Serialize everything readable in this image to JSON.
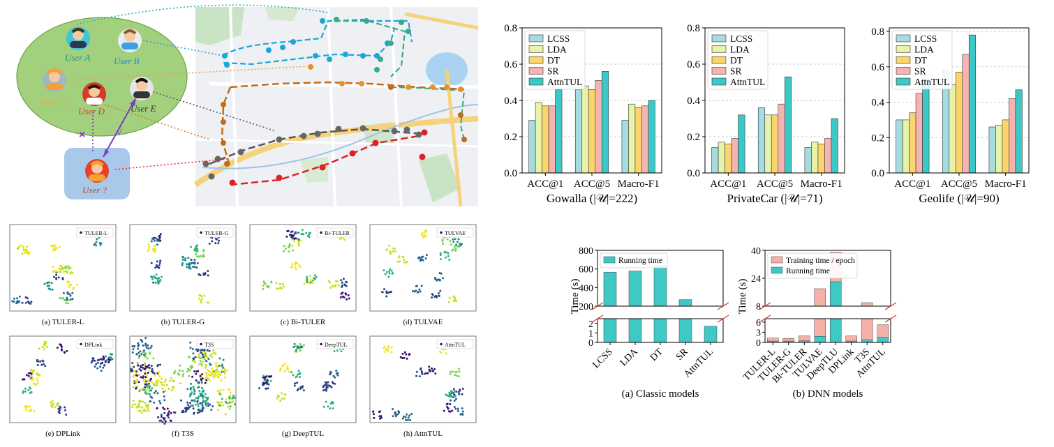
{
  "colors": {
    "LCSS": "#a6dbe0",
    "LDA": "#e6f3a8",
    "DT": "#fbd56b",
    "SR": "#f6b4b0",
    "AttnTUL": "#3cc8c6",
    "training": "#f6b0aa",
    "running": "#3ec9c6"
  },
  "diagram": {
    "users": [
      "User A",
      "User B",
      "User C",
      "User D",
      "User E",
      "User ?"
    ],
    "check": "√",
    "cross": "×"
  },
  "chart_data": [
    {
      "type": "bar",
      "title": "Gowalla (|𝒰|=222)",
      "categories": [
        "ACC@1",
        "ACC@5",
        "Macro-F1"
      ],
      "ylim": [
        0,
        0.8
      ],
      "yticks": [
        "0.0",
        "0.2",
        "0.4",
        "0.6",
        "0.8"
      ],
      "grid": true,
      "legend": "top-left",
      "series": [
        {
          "name": "LCSS",
          "values": [
            0.29,
            0.46,
            0.29
          ]
        },
        {
          "name": "LDA",
          "values": [
            0.39,
            0.48,
            0.38
          ]
        },
        {
          "name": "DT",
          "values": [
            0.37,
            0.46,
            0.36
          ]
        },
        {
          "name": "SR",
          "values": [
            0.37,
            0.51,
            0.37
          ]
        },
        {
          "name": "AttnTUL",
          "values": [
            0.46,
            0.56,
            0.4
          ]
        }
      ]
    },
    {
      "type": "bar",
      "title": "PrivateCar (|𝒰|=71)",
      "categories": [
        "ACC@1",
        "ACC@5",
        "Macro-F1"
      ],
      "ylim": [
        0,
        0.8
      ],
      "yticks": [
        "0.0",
        "0.2",
        "0.4",
        "0.6",
        "0.8"
      ],
      "grid": true,
      "legend": "top-left",
      "series": [
        {
          "name": "LCSS",
          "values": [
            0.14,
            0.36,
            0.14
          ]
        },
        {
          "name": "LDA",
          "values": [
            0.17,
            0.32,
            0.17
          ]
        },
        {
          "name": "DT",
          "values": [
            0.16,
            0.32,
            0.16
          ]
        },
        {
          "name": "SR",
          "values": [
            0.19,
            0.38,
            0.19
          ]
        },
        {
          "name": "AttnTUL",
          "values": [
            0.32,
            0.53,
            0.3
          ]
        }
      ]
    },
    {
      "type": "bar",
      "title": "Geolife (|𝒰|=90)",
      "categories": [
        "ACC@1",
        "ACC@5",
        "Macro-F1"
      ],
      "ylim": [
        0,
        0.82
      ],
      "yticks": [
        "0.0",
        "0.2",
        "0.4",
        "0.6",
        "0.8"
      ],
      "grid": true,
      "legend": "top-left",
      "series": [
        {
          "name": "LCSS",
          "values": [
            0.3,
            0.58,
            0.26
          ]
        },
        {
          "name": "LDA",
          "values": [
            0.3,
            0.5,
            0.27
          ]
        },
        {
          "name": "DT",
          "values": [
            0.34,
            0.57,
            0.3
          ]
        },
        {
          "name": "SR",
          "values": [
            0.45,
            0.67,
            0.42
          ]
        },
        {
          "name": "AttnTUL",
          "values": [
            0.53,
            0.78,
            0.47
          ]
        }
      ]
    },
    {
      "type": "bar",
      "subtitle": "(a) Classic models",
      "ylabel": "Time (s)",
      "categories": [
        "LCSS",
        "LDA",
        "DT",
        "SR",
        "AttnTUL"
      ],
      "broken_axis": true,
      "upper_range": [
        200,
        800
      ],
      "upper_ticks": [
        "200",
        "400",
        "600",
        "800"
      ],
      "lower_range": [
        0,
        2.5
      ],
      "lower_ticks": [
        "0",
        "1",
        "2"
      ],
      "legend": "top-left",
      "series": [
        {
          "name": "Running time",
          "values": [
            565,
            578,
            640,
            270,
            1.7
          ]
        }
      ]
    },
    {
      "type": "bar",
      "subtitle": "(b) DNN models",
      "ylabel": "Time (s)",
      "categories": [
        "TULER-L",
        "TULER-G",
        "Bi-TULER",
        "TULVAE",
        "DeepTLU",
        "DPLink",
        "T3S",
        "AttnTUL"
      ],
      "broken_axis": true,
      "upper_range": [
        8,
        40
      ],
      "upper_ticks": [
        "8",
        "24",
        "40"
      ],
      "lower_range": [
        0,
        7
      ],
      "lower_ticks": [
        "0",
        "3",
        "6"
      ],
      "stacked": true,
      "legend": "top-left",
      "series": [
        {
          "name": "Training time / epoch",
          "values": [
            1.3,
            1.2,
            1.9,
            18.0,
            39.0,
            1.9,
            10.0,
            5.2
          ]
        },
        {
          "name": "Running time",
          "values": [
            0.4,
            0.4,
            0.5,
            1.8,
            22.0,
            0.4,
            0.8,
            1.5
          ]
        }
      ]
    }
  ],
  "embedding_panels": [
    {
      "legend": "TULER-L",
      "caption": "(a) TULER-L"
    },
    {
      "legend": "TULER-G",
      "caption": "(b) TULER-G"
    },
    {
      "legend": "Bi-TULER",
      "caption": "(c) Bi-TULER"
    },
    {
      "legend": "TULVAE",
      "caption": "(d) TULVAE"
    },
    {
      "legend": "DPLink",
      "caption": "(e) DPLink"
    },
    {
      "legend": "T3S",
      "caption": "(f) T3S"
    },
    {
      "legend": "DeepTUL",
      "caption": "(g) DeepTUL"
    },
    {
      "legend": "AttnTUL",
      "caption": "(h) AttnTUL"
    }
  ]
}
